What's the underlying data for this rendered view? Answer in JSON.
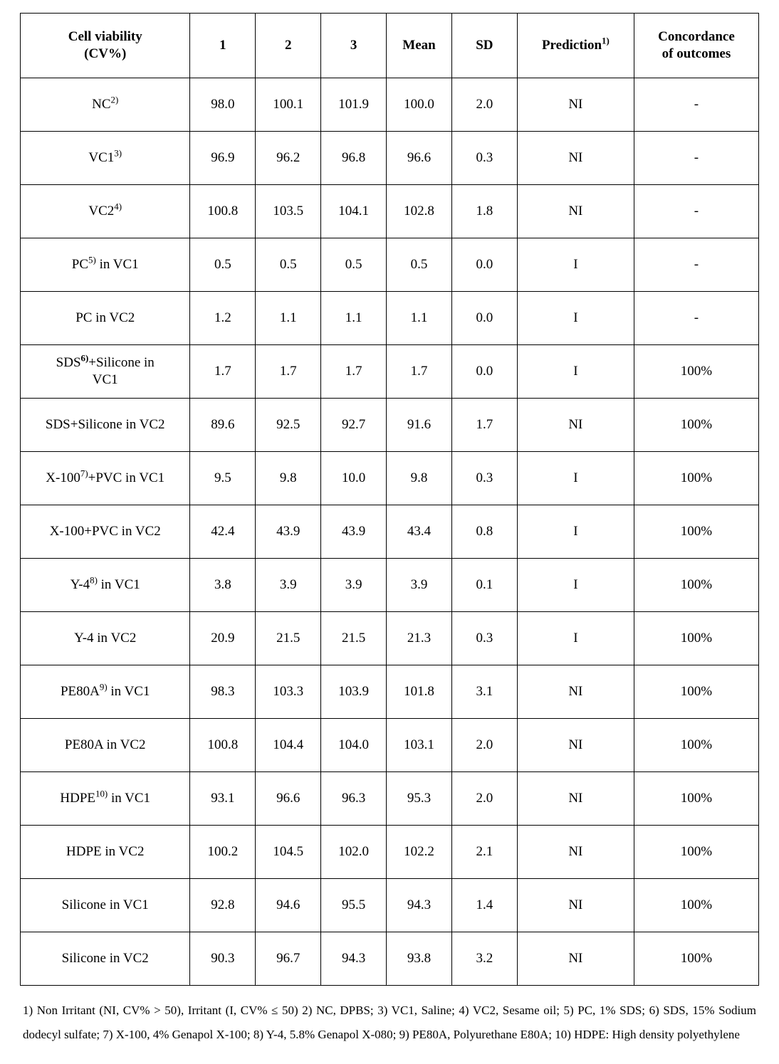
{
  "table": {
    "columns": [
      {
        "label_html": "Cell viability<br>(CV%)"
      },
      {
        "label_html": "1"
      },
      {
        "label_html": "2"
      },
      {
        "label_html": "3"
      },
      {
        "label_html": "Mean"
      },
      {
        "label_html": "SD"
      },
      {
        "label_html": "Prediction<span class=\"sup\">1)</span>"
      },
      {
        "label_html": "Concordance<br>of outcomes"
      }
    ],
    "rows": [
      {
        "label_html": "NC<span class=\"sup\">2)</span>",
        "v1": "98.0",
        "v2": "100.1",
        "v3": "101.9",
        "mean": "100.0",
        "sd": "2.0",
        "prediction": "NI",
        "concordance": "-"
      },
      {
        "label_html": "VC1<span class=\"sup\">3)</span>",
        "v1": "96.9",
        "v2": "96.2",
        "v3": "96.8",
        "mean": "96.6",
        "sd": "0.3",
        "prediction": "NI",
        "concordance": "-"
      },
      {
        "label_html": "VC2<span class=\"sup\">4)</span>",
        "v1": "100.8",
        "v2": "103.5",
        "v3": "104.1",
        "mean": "102.8",
        "sd": "1.8",
        "prediction": "NI",
        "concordance": "-"
      },
      {
        "label_html": "PC<span class=\"sup\">5)</span> in VC1",
        "v1": "0.5",
        "v2": "0.5",
        "v3": "0.5",
        "mean": "0.5",
        "sd": "0.0",
        "prediction": "I",
        "concordance": "-"
      },
      {
        "label_html": "PC in VC2",
        "v1": "1.2",
        "v2": "1.1",
        "v3": "1.1",
        "mean": "1.1",
        "sd": "0.0",
        "prediction": "I",
        "concordance": "-"
      },
      {
        "label_html": "SDS<span class=\"sup\"><b>6)</b></span>+Silicone in<br>VC1",
        "v1": "1.7",
        "v2": "1.7",
        "v3": "1.7",
        "mean": "1.7",
        "sd": "0.0",
        "prediction": "I",
        "concordance": "100%"
      },
      {
        "label_html": "SDS+Silicone in VC2",
        "v1": "89.6",
        "v2": "92.5",
        "v3": "92.7",
        "mean": "91.6",
        "sd": "1.7",
        "prediction": "NI",
        "concordance": "100%"
      },
      {
        "label_html": "X-100<span class=\"sup\">7)</span>+PVC in VC1",
        "v1": "9.5",
        "v2": "9.8",
        "v3": "10.0",
        "mean": "9.8",
        "sd": "0.3",
        "prediction": "I",
        "concordance": "100%"
      },
      {
        "label_html": "X-100+PVC in VC2",
        "v1": "42.4",
        "v2": "43.9",
        "v3": "43.9",
        "mean": "43.4",
        "sd": "0.8",
        "prediction": "I",
        "concordance": "100%"
      },
      {
        "label_html": "Y-4<span class=\"sup\">8)</span> in VC1",
        "v1": "3.8",
        "v2": "3.9",
        "v3": "3.9",
        "mean": "3.9",
        "sd": "0.1",
        "prediction": "I",
        "concordance": "100%"
      },
      {
        "label_html": "Y-4 in VC2",
        "v1": "20.9",
        "v2": "21.5",
        "v3": "21.5",
        "mean": "21.3",
        "sd": "0.3",
        "prediction": "I",
        "concordance": "100%"
      },
      {
        "label_html": "PE80A<span class=\"sup\">9)</span> in VC1",
        "v1": "98.3",
        "v2": "103.3",
        "v3": "103.9",
        "mean": "101.8",
        "sd": "3.1",
        "prediction": "NI",
        "concordance": "100%"
      },
      {
        "label_html": "PE80A in VC2",
        "v1": "100.8",
        "v2": "104.4",
        "v3": "104.0",
        "mean": "103.1",
        "sd": "2.0",
        "prediction": "NI",
        "concordance": "100%"
      },
      {
        "label_html": "HDPE<span class=\"sup\">10)</span> in VC1",
        "v1": "93.1",
        "v2": "96.6",
        "v3": "96.3",
        "mean": "95.3",
        "sd": "2.0",
        "prediction": "NI",
        "concordance": "100%"
      },
      {
        "label_html": "HDPE in VC2",
        "v1": "100.2",
        "v2": "104.5",
        "v3": "102.0",
        "mean": "102.2",
        "sd": "2.1",
        "prediction": "NI",
        "concordance": "100%"
      },
      {
        "label_html": "Silicone in VC1",
        "v1": "92.8",
        "v2": "94.6",
        "v3": "95.5",
        "mean": "94.3",
        "sd": "1.4",
        "prediction": "NI",
        "concordance": "100%"
      },
      {
        "label_html": "Silicone in VC2",
        "v1": "90.3",
        "v2": "96.7",
        "v3": "94.3",
        "mean": "93.8",
        "sd": "3.2",
        "prediction": "NI",
        "concordance": "100%"
      }
    ],
    "colors": {
      "border": "#000000",
      "background": "#ffffff",
      "text": "#000000"
    },
    "font": {
      "family": "Times New Roman",
      "header_size_pt": 14,
      "cell_size_pt": 14
    }
  },
  "footnotes_html": "1) Non Irritant (NI, CV% &gt; 50), Irritant (I, CV% ≤ 50) 2) NC, DPBS; 3) VC1, Saline; 4) VC2, Sesame oil; 5) PC, 1% SDS; 6) SDS, 15% Sodium dodecyl sulfate; 7) X-100, 4% Genapol X-100; 8) Y-4, 5.8% Genapol X-080; 9) PE80A, Polyurethane E80A; 10) HDPE: High density polyethylene"
}
